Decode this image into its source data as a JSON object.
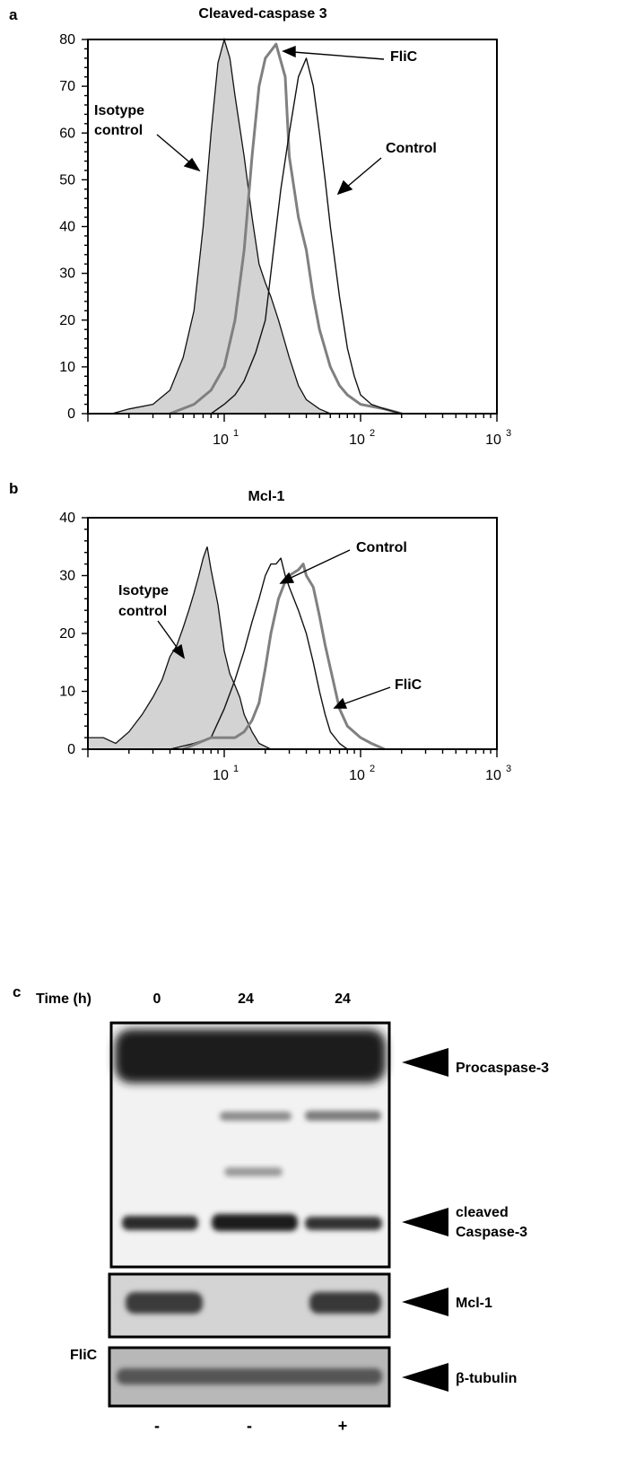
{
  "panels": {
    "a": {
      "letter": "a",
      "title": "Cleaved-caspase 3",
      "annotations": {
        "isotype_line1": "Isotype",
        "isotype_line2": "control",
        "flic": "FliC",
        "control": "Control"
      }
    },
    "b": {
      "letter": "b",
      "title": "Mcl-1",
      "annotations": {
        "isotype_line1": "Isotype",
        "isotype_line2": "control",
        "flic": "FliC",
        "control": "Control"
      }
    },
    "c": {
      "letter": "c",
      "time_label": "Time (h)",
      "time_values": [
        "0",
        "24",
        "24"
      ],
      "band_labels": {
        "procaspase": "Procaspase-3",
        "cleaved_line1": "cleaved",
        "cleaved_line2": "Caspase-3",
        "mcl1": "Mcl-1",
        "tubulin": "β-tubulin"
      },
      "flic_label": "FliC",
      "flic_values": [
        "-",
        "-",
        "+"
      ]
    }
  },
  "chart_data": [
    {
      "type": "area",
      "panel": "a",
      "title": "Cleaved-caspase 3",
      "xscale": "log",
      "xlim": [
        1,
        1000
      ],
      "ylim": [
        0,
        80
      ],
      "yticks": [
        0,
        10,
        20,
        30,
        40,
        50,
        60,
        70,
        80
      ],
      "xticks": [
        {
          "value": 10,
          "base": "10",
          "exp": "1"
        },
        {
          "value": 100,
          "base": "10",
          "exp": "2"
        },
        {
          "value": 1000,
          "base": "10",
          "exp": "3"
        }
      ],
      "series": [
        {
          "name": "Isotype control",
          "fill": "#d3d3d3",
          "stroke": "#111111",
          "points": [
            [
              1.5,
              0
            ],
            [
              2,
              1
            ],
            [
              3,
              2
            ],
            [
              4,
              5
            ],
            [
              5,
              12
            ],
            [
              6,
              22
            ],
            [
              7,
              40
            ],
            [
              8,
              60
            ],
            [
              9,
              75
            ],
            [
              10,
              80
            ],
            [
              11,
              76
            ],
            [
              12,
              68
            ],
            [
              14,
              55
            ],
            [
              16,
              42
            ],
            [
              18,
              32
            ],
            [
              20,
              28
            ],
            [
              22,
              25
            ],
            [
              25,
              20
            ],
            [
              30,
              12
            ],
            [
              35,
              6
            ],
            [
              40,
              3
            ],
            [
              50,
              1
            ],
            [
              60,
              0
            ]
          ]
        },
        {
          "name": "FliC",
          "fill": "none",
          "stroke": "#808080",
          "points": [
            [
              4,
              0
            ],
            [
              6,
              2
            ],
            [
              8,
              5
            ],
            [
              10,
              10
            ],
            [
              12,
              20
            ],
            [
              14,
              35
            ],
            [
              16,
              55
            ],
            [
              18,
              70
            ],
            [
              20,
              76
            ],
            [
              24,
              79
            ],
            [
              28,
              72
            ],
            [
              30,
              55
            ],
            [
              35,
              42
            ],
            [
              40,
              35
            ],
            [
              45,
              25
            ],
            [
              50,
              18
            ],
            [
              60,
              10
            ],
            [
              70,
              6
            ],
            [
              80,
              4
            ],
            [
              100,
              2
            ],
            [
              150,
              1
            ],
            [
              200,
              0
            ]
          ]
        },
        {
          "name": "Control",
          "fill": "none",
          "stroke": "#111111",
          "points": [
            [
              8,
              0
            ],
            [
              10,
              2
            ],
            [
              12,
              4
            ],
            [
              14,
              7
            ],
            [
              17,
              13
            ],
            [
              20,
              20
            ],
            [
              23,
              35
            ],
            [
              26,
              48
            ],
            [
              30,
              60
            ],
            [
              35,
              72
            ],
            [
              40,
              76
            ],
            [
              45,
              70
            ],
            [
              50,
              60
            ],
            [
              55,
              50
            ],
            [
              60,
              40
            ],
            [
              70,
              25
            ],
            [
              80,
              14
            ],
            [
              90,
              8
            ],
            [
              100,
              4
            ],
            [
              120,
              2
            ],
            [
              150,
              1
            ],
            [
              200,
              0
            ]
          ]
        }
      ]
    },
    {
      "type": "area",
      "panel": "b",
      "title": "Mcl-1",
      "xscale": "log",
      "xlim": [
        1,
        1000
      ],
      "ylim": [
        0,
        40
      ],
      "yticks": [
        0,
        10,
        20,
        30,
        40
      ],
      "xticks": [
        {
          "value": 10,
          "base": "10",
          "exp": "1"
        },
        {
          "value": 100,
          "base": "10",
          "exp": "2"
        },
        {
          "value": 1000,
          "base": "10",
          "exp": "3"
        }
      ],
      "series": [
        {
          "name": "Isotype control",
          "fill": "#d3d3d3",
          "stroke": "#111111",
          "points": [
            [
              1,
              2
            ],
            [
              1.3,
              2
            ],
            [
              1.6,
              1
            ],
            [
              2,
              3
            ],
            [
              2.5,
              6
            ],
            [
              3,
              9
            ],
            [
              3.5,
              12
            ],
            [
              4,
              16
            ],
            [
              4.5,
              18
            ],
            [
              5,
              21
            ],
            [
              5.5,
              24
            ],
            [
              6,
              27
            ],
            [
              6.5,
              30
            ],
            [
              7,
              33
            ],
            [
              7.5,
              35
            ],
            [
              8,
              31
            ],
            [
              9,
              25
            ],
            [
              10,
              17
            ],
            [
              11,
              13
            ],
            [
              12,
              11
            ],
            [
              13,
              9
            ],
            [
              14,
              6
            ],
            [
              16,
              3
            ],
            [
              18,
              1
            ],
            [
              22,
              0
            ]
          ]
        },
        {
          "name": "Control",
          "fill": "none",
          "stroke": "#111111",
          "points": [
            [
              4,
              0
            ],
            [
              6,
              1
            ],
            [
              8,
              2
            ],
            [
              10,
              7
            ],
            [
              12,
              12
            ],
            [
              14,
              17
            ],
            [
              16,
              22
            ],
            [
              18,
              26
            ],
            [
              20,
              30
            ],
            [
              22,
              32
            ],
            [
              24,
              32
            ],
            [
              26,
              33
            ],
            [
              28,
              30
            ],
            [
              30,
              28
            ],
            [
              35,
              24
            ],
            [
              40,
              20
            ],
            [
              45,
              15
            ],
            [
              50,
              10
            ],
            [
              55,
              6
            ],
            [
              60,
              3
            ],
            [
              70,
              1
            ],
            [
              80,
              0
            ]
          ]
        },
        {
          "name": "FliC",
          "fill": "none",
          "stroke": "#808080",
          "points": [
            [
              5,
              0
            ],
            [
              8,
              2
            ],
            [
              10,
              2
            ],
            [
              12,
              2
            ],
            [
              14,
              3
            ],
            [
              16,
              5
            ],
            [
              18,
              8
            ],
            [
              20,
              14
            ],
            [
              22,
              20
            ],
            [
              25,
              26
            ],
            [
              28,
              29
            ],
            [
              30,
              30
            ],
            [
              35,
              31
            ],
            [
              38,
              32
            ],
            [
              40,
              30
            ],
            [
              45,
              28
            ],
            [
              50,
              23
            ],
            [
              55,
              18
            ],
            [
              60,
              14
            ],
            [
              70,
              7
            ],
            [
              80,
              4
            ],
            [
              100,
              2
            ],
            [
              120,
              1
            ],
            [
              150,
              0
            ]
          ]
        }
      ]
    }
  ]
}
